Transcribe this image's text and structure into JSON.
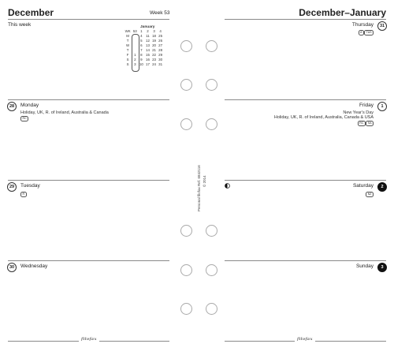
{
  "left_page": {
    "month_title": "December",
    "week_label": "Week 53",
    "this_week": "This week",
    "days": [
      {
        "num": "28",
        "name": "Monday",
        "note": "Holiday, UK, R. of Ireland, Australia & Canada",
        "badge": "RC"
      },
      {
        "num": "29",
        "name": "Tuesday",
        "note": "",
        "badge": "R"
      },
      {
        "num": "30",
        "name": "Wednesday",
        "note": "",
        "badge": ""
      }
    ]
  },
  "mini_calendar": {
    "month": "January",
    "header_wk": "WK",
    "header_wk_num": "53",
    "col_heads": [
      "1",
      "2",
      "3",
      "4"
    ],
    "rows": [
      {
        "day": "M",
        "cells": [
          "4",
          "11",
          "18",
          "25"
        ]
      },
      {
        "day": "T",
        "cells": [
          "5",
          "12",
          "19",
          "26"
        ]
      },
      {
        "day": "W",
        "cells": [
          "6",
          "13",
          "20",
          "27"
        ]
      },
      {
        "day": "T",
        "cells": [
          "7",
          "14",
          "21",
          "28"
        ]
      },
      {
        "day": "F",
        "cells": [
          "1",
          "8",
          "15",
          "22",
          "29"
        ]
      },
      {
        "day": "S",
        "cells": [
          "2",
          "9",
          "16",
          "23",
          "30"
        ]
      },
      {
        "day": "S",
        "cells": [
          "3",
          "10",
          "17",
          "24",
          "31"
        ]
      }
    ]
  },
  "right_page": {
    "month_title": "December–January",
    "days": [
      {
        "num": "31",
        "name": "Thursday",
        "note": "",
        "note2": "",
        "badges": [
          "A",
          "TAS"
        ],
        "filled": false
      },
      {
        "num": "1",
        "name": "Friday",
        "note": "New Year's Day",
        "note2": "Holiday, UK, R. of Ireland, Australia, Canada & USA",
        "badges": [
          "RC",
          "SA"
        ],
        "filled": false
      },
      {
        "num": "2",
        "name": "Saturday",
        "note": "",
        "note2": "",
        "badges": [
          "NZ"
        ],
        "filled": true
      },
      {
        "num": "3",
        "name": "Sunday",
        "note": "",
        "note2": "",
        "badges": [],
        "filled": true
      }
    ]
  },
  "spine_text": {
    "line1": "Personal filofax Ref. 6842116",
    "line2": "© 2014"
  },
  "footer_logo": "filofax",
  "moon_icon": "first-quarter-moon-icon",
  "colors": {
    "rule": "#8a8a8a",
    "text": "#222222",
    "hole": "#aaaaaa"
  }
}
